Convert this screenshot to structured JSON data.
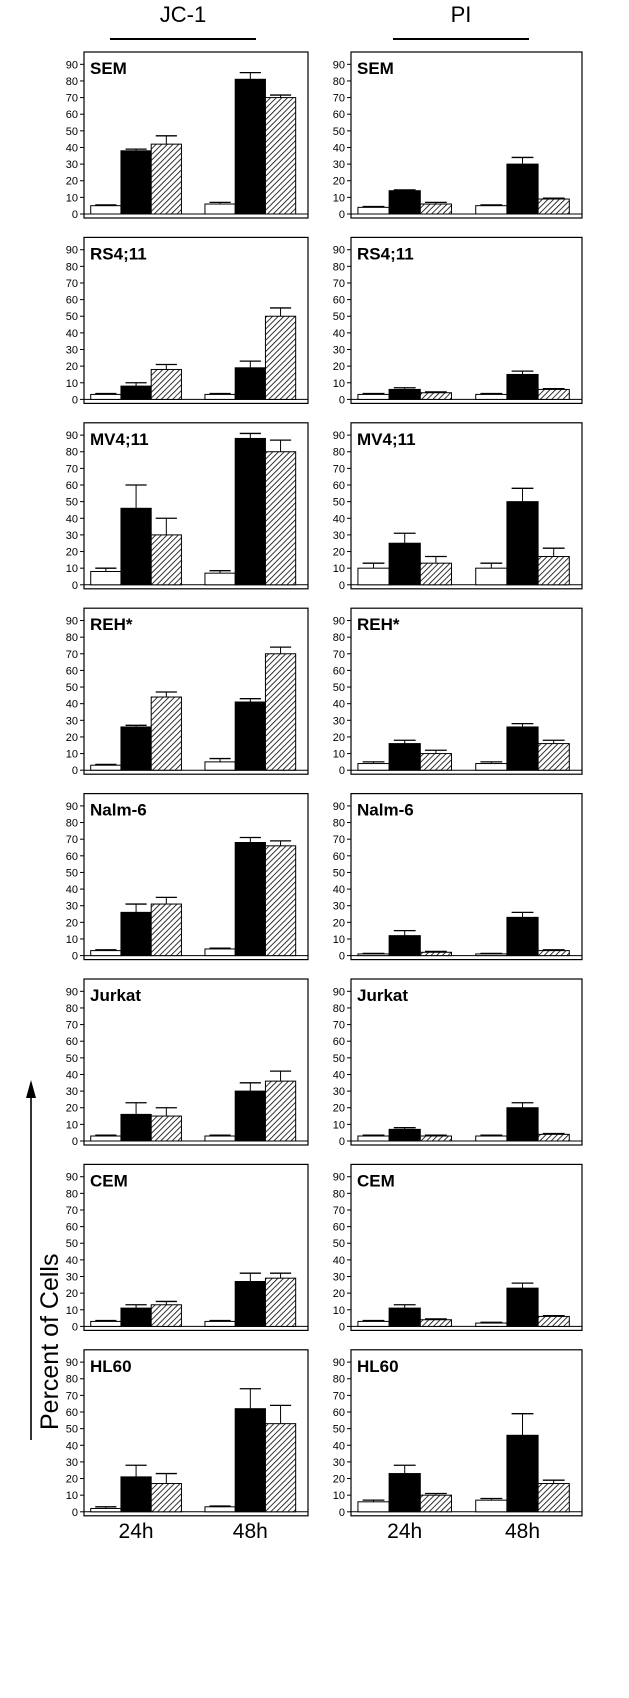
{
  "column_titles": [
    "JC-1",
    "PI"
  ],
  "y_axis_label": "Percent of Cells",
  "x_tick_labels": [
    "24h",
    "48h"
  ],
  "y_ticks": [
    0,
    10,
    20,
    30,
    40,
    50,
    60,
    70,
    80,
    90
  ],
  "bar_fills": [
    "white",
    "black",
    "hatched"
  ],
  "chart_data": [
    {
      "type": "bar",
      "panel": "JC-1",
      "title": "SEM",
      "categories": [
        "24h",
        "48h"
      ],
      "ylim": [
        0,
        95
      ],
      "series": [
        {
          "values": [
            5,
            6
          ],
          "errors": [
            0.5,
            1
          ]
        },
        {
          "values": [
            38,
            81
          ],
          "errors": [
            1,
            4
          ]
        },
        {
          "values": [
            42,
            70
          ],
          "errors": [
            5,
            1.5
          ]
        }
      ]
    },
    {
      "type": "bar",
      "panel": "PI",
      "title": "SEM",
      "categories": [
        "24h",
        "48h"
      ],
      "ylim": [
        0,
        95
      ],
      "series": [
        {
          "values": [
            4,
            5
          ],
          "errors": [
            0.5,
            0.5
          ]
        },
        {
          "values": [
            14,
            30
          ],
          "errors": [
            0.5,
            4
          ]
        },
        {
          "values": [
            6,
            9
          ],
          "errors": [
            1,
            0.5
          ]
        }
      ]
    },
    {
      "type": "bar",
      "panel": "JC-1",
      "title": "RS4;11",
      "categories": [
        "24h",
        "48h"
      ],
      "ylim": [
        0,
        95
      ],
      "series": [
        {
          "values": [
            3,
            3
          ],
          "errors": [
            0.5,
            0.5
          ]
        },
        {
          "values": [
            8,
            19
          ],
          "errors": [
            2,
            4
          ]
        },
        {
          "values": [
            18,
            50
          ],
          "errors": [
            3,
            5
          ]
        }
      ]
    },
    {
      "type": "bar",
      "panel": "PI",
      "title": "RS4;11",
      "categories": [
        "24h",
        "48h"
      ],
      "ylim": [
        0,
        95
      ],
      "series": [
        {
          "values": [
            3,
            3
          ],
          "errors": [
            0.5,
            0.5
          ]
        },
        {
          "values": [
            6,
            15
          ],
          "errors": [
            1,
            2
          ]
        },
        {
          "values": [
            4,
            6
          ],
          "errors": [
            0.5,
            0.5
          ]
        }
      ]
    },
    {
      "type": "bar",
      "panel": "JC-1",
      "title": "MV4;11",
      "categories": [
        "24h",
        "48h"
      ],
      "ylim": [
        0,
        95
      ],
      "series": [
        {
          "values": [
            8,
            7
          ],
          "errors": [
            2,
            1.5
          ]
        },
        {
          "values": [
            46,
            88
          ],
          "errors": [
            14,
            3
          ]
        },
        {
          "values": [
            30,
            80
          ],
          "errors": [
            10,
            7
          ]
        }
      ]
    },
    {
      "type": "bar",
      "panel": "PI",
      "title": "MV4;11",
      "categories": [
        "24h",
        "48h"
      ],
      "ylim": [
        0,
        95
      ],
      "series": [
        {
          "values": [
            10,
            10
          ],
          "errors": [
            3,
            3
          ]
        },
        {
          "values": [
            25,
            50
          ],
          "errors": [
            6,
            8
          ]
        },
        {
          "values": [
            13,
            17
          ],
          "errors": [
            4,
            5
          ]
        }
      ]
    },
    {
      "type": "bar",
      "panel": "JC-1",
      "title": "REH*",
      "categories": [
        "24h",
        "48h"
      ],
      "ylim": [
        0,
        95
      ],
      "series": [
        {
          "values": [
            3,
            5
          ],
          "errors": [
            0.5,
            2
          ]
        },
        {
          "values": [
            26,
            41
          ],
          "errors": [
            1,
            2
          ]
        },
        {
          "values": [
            44,
            70
          ],
          "errors": [
            3,
            4
          ]
        }
      ]
    },
    {
      "type": "bar",
      "panel": "PI",
      "title": "REH*",
      "categories": [
        "24h",
        "48h"
      ],
      "ylim": [
        0,
        95
      ],
      "series": [
        {
          "values": [
            4,
            4
          ],
          "errors": [
            1,
            1
          ]
        },
        {
          "values": [
            16,
            26
          ],
          "errors": [
            2,
            2
          ]
        },
        {
          "values": [
            10,
            16
          ],
          "errors": [
            2,
            2
          ]
        }
      ]
    },
    {
      "type": "bar",
      "panel": "JC-1",
      "title": "Nalm-6",
      "categories": [
        "24h",
        "48h"
      ],
      "ylim": [
        0,
        95
      ],
      "series": [
        {
          "values": [
            3,
            4
          ],
          "errors": [
            0.5,
            0.5
          ]
        },
        {
          "values": [
            26,
            68
          ],
          "errors": [
            5,
            3
          ]
        },
        {
          "values": [
            31,
            66
          ],
          "errors": [
            4,
            3
          ]
        }
      ]
    },
    {
      "type": "bar",
      "panel": "PI",
      "title": "Nalm-6",
      "categories": [
        "24h",
        "48h"
      ],
      "ylim": [
        0,
        95
      ],
      "series": [
        {
          "values": [
            1,
            1
          ],
          "errors": [
            0.3,
            0.3
          ]
        },
        {
          "values": [
            12,
            23
          ],
          "errors": [
            3,
            3
          ]
        },
        {
          "values": [
            2,
            3
          ],
          "errors": [
            0.5,
            0.5
          ]
        }
      ]
    },
    {
      "type": "bar",
      "panel": "JC-1",
      "title": "Jurkat",
      "categories": [
        "24h",
        "48h"
      ],
      "ylim": [
        0,
        95
      ],
      "series": [
        {
          "values": [
            3,
            3
          ],
          "errors": [
            0.5,
            0.5
          ]
        },
        {
          "values": [
            16,
            30
          ],
          "errors": [
            7,
            5
          ]
        },
        {
          "values": [
            15,
            36
          ],
          "errors": [
            5,
            6
          ]
        }
      ]
    },
    {
      "type": "bar",
      "panel": "PI",
      "title": "Jurkat",
      "categories": [
        "24h",
        "48h"
      ],
      "ylim": [
        0,
        95
      ],
      "series": [
        {
          "values": [
            3,
            3
          ],
          "errors": [
            0.5,
            0.5
          ]
        },
        {
          "values": [
            7,
            20
          ],
          "errors": [
            1,
            3
          ]
        },
        {
          "values": [
            3,
            4
          ],
          "errors": [
            0.5,
            0.5
          ]
        }
      ]
    },
    {
      "type": "bar",
      "panel": "JC-1",
      "title": "CEM",
      "categories": [
        "24h",
        "48h"
      ],
      "ylim": [
        0,
        95
      ],
      "series": [
        {
          "values": [
            3,
            3
          ],
          "errors": [
            0.5,
            0.5
          ]
        },
        {
          "values": [
            11,
            27
          ],
          "errors": [
            2,
            5
          ]
        },
        {
          "values": [
            13,
            29
          ],
          "errors": [
            2,
            3
          ]
        }
      ]
    },
    {
      "type": "bar",
      "panel": "PI",
      "title": "CEM",
      "categories": [
        "24h",
        "48h"
      ],
      "ylim": [
        0,
        95
      ],
      "series": [
        {
          "values": [
            3,
            2
          ],
          "errors": [
            0.5,
            0.5
          ]
        },
        {
          "values": [
            11,
            23
          ],
          "errors": [
            2,
            3
          ]
        },
        {
          "values": [
            4,
            6
          ],
          "errors": [
            0.5,
            0.5
          ]
        }
      ]
    },
    {
      "type": "bar",
      "panel": "JC-1",
      "title": "HL60",
      "categories": [
        "24h",
        "48h"
      ],
      "ylim": [
        0,
        95
      ],
      "series": [
        {
          "values": [
            2,
            3
          ],
          "errors": [
            1,
            0.5
          ]
        },
        {
          "values": [
            21,
            62
          ],
          "errors": [
            7,
            12
          ]
        },
        {
          "values": [
            17,
            53
          ],
          "errors": [
            6,
            11
          ]
        }
      ]
    },
    {
      "type": "bar",
      "panel": "PI",
      "title": "HL60",
      "categories": [
        "24h",
        "48h"
      ],
      "ylim": [
        0,
        95
      ],
      "series": [
        {
          "values": [
            6,
            7
          ],
          "errors": [
            1,
            1
          ]
        },
        {
          "values": [
            23,
            46
          ],
          "errors": [
            5,
            13
          ]
        },
        {
          "values": [
            10,
            17
          ],
          "errors": [
            1,
            2
          ]
        }
      ]
    }
  ]
}
